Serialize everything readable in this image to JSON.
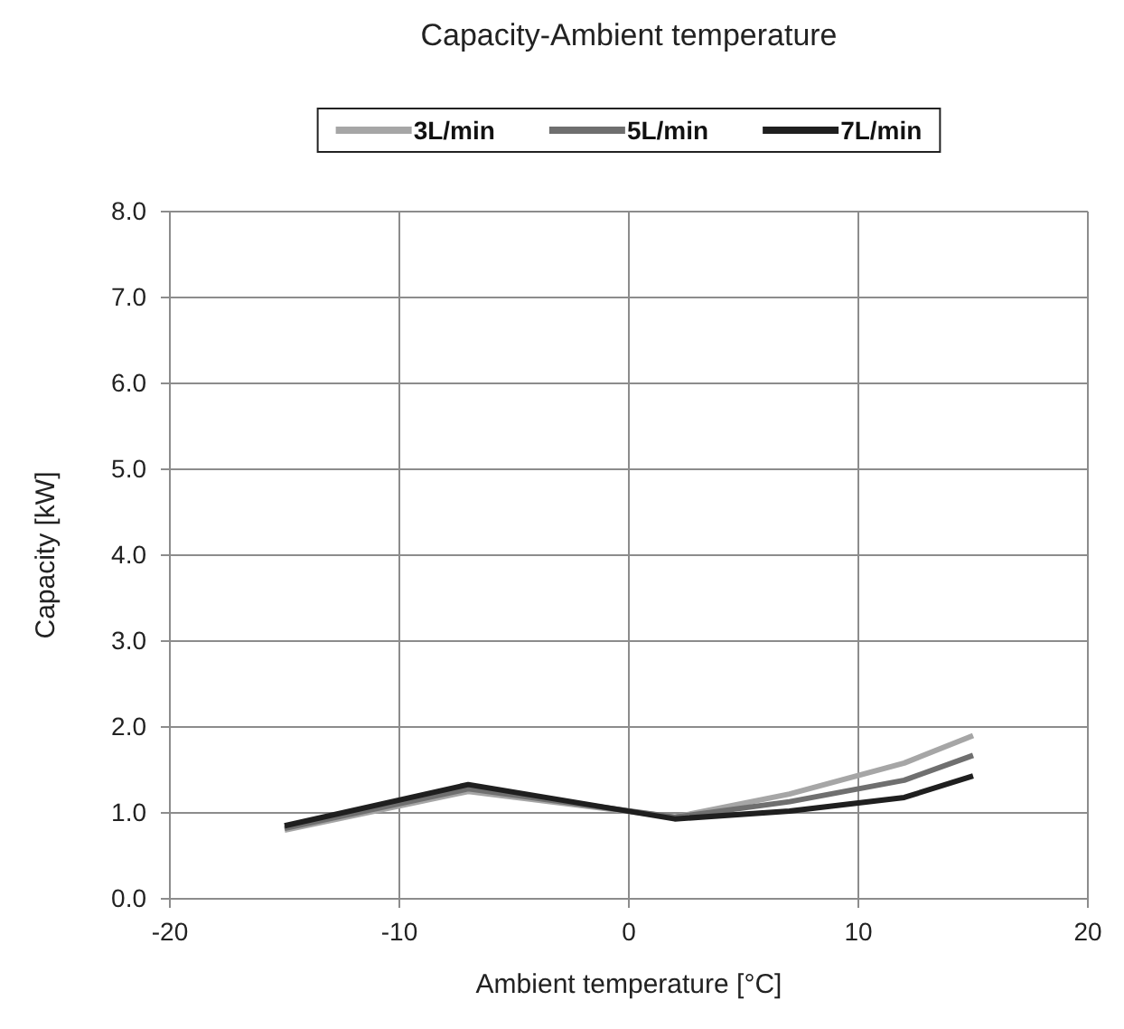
{
  "chart_data": {
    "type": "line",
    "title": "Capacity-Ambient temperature",
    "xlabel": "Ambient temperature [°C]",
    "ylabel": "Capacity [kW]",
    "x": [
      -15,
      -7,
      2,
      7,
      12,
      15
    ],
    "series": [
      {
        "name": "3L/min",
        "color": "#a6a6a6",
        "values": [
          0.8,
          1.25,
          0.95,
          1.22,
          1.58,
          1.9
        ]
      },
      {
        "name": "5L/min",
        "color": "#6f6f6f",
        "values": [
          0.82,
          1.28,
          0.95,
          1.13,
          1.38,
          1.67
        ]
      },
      {
        "name": "7L/min",
        "color": "#1f1f1f",
        "values": [
          0.85,
          1.33,
          0.93,
          1.02,
          1.18,
          1.43
        ]
      }
    ],
    "xlim": [
      -20,
      20
    ],
    "xticks": [
      -20,
      -10,
      0,
      10,
      20
    ],
    "ylim": [
      0,
      8
    ],
    "yticks": [
      {
        "value": 0,
        "label": "0.0"
      },
      {
        "value": 1,
        "label": "1.0"
      },
      {
        "value": 2,
        "label": "2.0"
      },
      {
        "value": 3,
        "label": "3.0"
      },
      {
        "value": 4,
        "label": "4.0"
      },
      {
        "value": 5,
        "label": "5.0"
      },
      {
        "value": 6,
        "label": "6.0"
      },
      {
        "value": 7,
        "label": "7.0"
      },
      {
        "value": 8,
        "label": "8.0"
      }
    ],
    "grid": true,
    "legend": "top",
    "marker": "none",
    "line_style": "solid"
  }
}
